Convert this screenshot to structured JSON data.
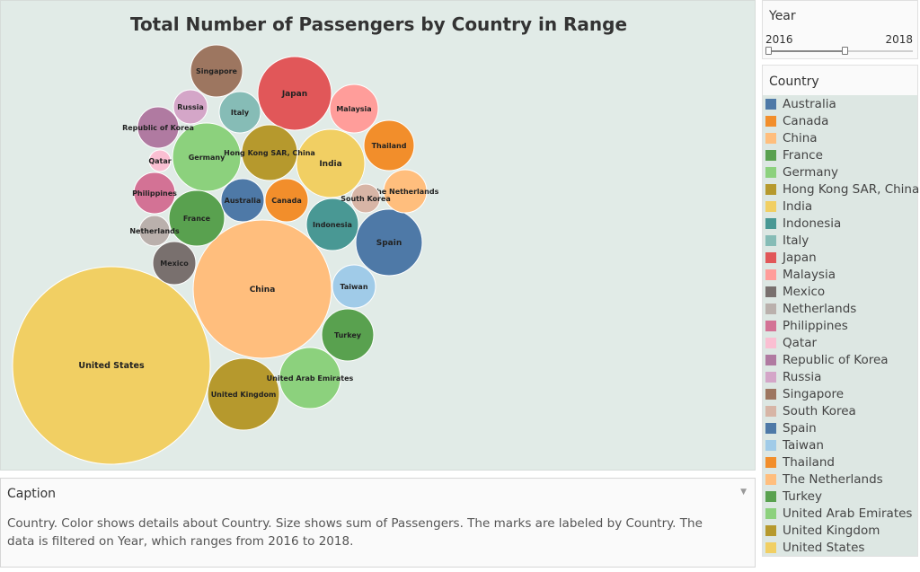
{
  "chart_data": {
    "type": "bubble",
    "title": "Total Number of Passengers by Country in Range",
    "size_measure": "sum of Passengers",
    "bubbles": [
      {
        "country": "United States",
        "color": "#f1cf63"
      },
      {
        "country": "China",
        "color": "#ffbe7d"
      },
      {
        "country": "Spain",
        "color": "#4e79a7"
      },
      {
        "country": "Japan",
        "color": "#e15759"
      },
      {
        "country": "United Kingdom",
        "color": "#b6992d"
      },
      {
        "country": "India",
        "color": "#f1cf63"
      },
      {
        "country": "United Arab Emirates",
        "color": "#8cd17d"
      },
      {
        "country": "Germany",
        "color": "#8cd17d"
      },
      {
        "country": "Hong Kong SAR, China",
        "color": "#b6992d"
      },
      {
        "country": "Turkey",
        "color": "#59a14f"
      },
      {
        "country": "Indonesia",
        "color": "#499894"
      },
      {
        "country": "France",
        "color": "#59a14f"
      },
      {
        "country": "Singapore",
        "color": "#9d7660"
      },
      {
        "country": "Thailand",
        "color": "#f28e2b"
      },
      {
        "country": "Malaysia",
        "color": "#ff9d9a"
      },
      {
        "country": "Australia",
        "color": "#4e79a7"
      },
      {
        "country": "Canada",
        "color": "#f28e2b"
      },
      {
        "country": "Taiwan",
        "color": "#a0cbe8"
      },
      {
        "country": "Mexico",
        "color": "#79706e"
      },
      {
        "country": "The Netherlands",
        "color": "#ffbe7d"
      },
      {
        "country": "Italy",
        "color": "#86bcb6"
      },
      {
        "country": "Republic of Korea",
        "color": "#b07aa1"
      },
      {
        "country": "Philippines",
        "color": "#d37295"
      },
      {
        "country": "Russia",
        "color": "#d4a6c8"
      },
      {
        "country": "Netherlands",
        "color": "#bab0ac"
      },
      {
        "country": "South Korea",
        "color": "#d7b5a6"
      },
      {
        "country": "Qatar",
        "color": "#fabfd2"
      }
    ]
  },
  "caption": {
    "header": "Caption",
    "text": "Country.  Color shows details about Country.  Size shows sum of Passengers.  The marks are labeled by Country. The data is filtered on Year, which ranges from 2016 to 2018."
  },
  "year_filter": {
    "title": "Year",
    "min_label": "2016",
    "max_label": "2018"
  },
  "legend": {
    "title": "Country",
    "items": [
      {
        "label": "Australia",
        "color": "#4e79a7"
      },
      {
        "label": "Canada",
        "color": "#f28e2b"
      },
      {
        "label": "China",
        "color": "#ffbe7d"
      },
      {
        "label": "France",
        "color": "#59a14f"
      },
      {
        "label": "Germany",
        "color": "#8cd17d"
      },
      {
        "label": "Hong Kong SAR, China",
        "color": "#b6992d"
      },
      {
        "label": "India",
        "color": "#f1cf63"
      },
      {
        "label": "Indonesia",
        "color": "#499894"
      },
      {
        "label": "Italy",
        "color": "#86bcb6"
      },
      {
        "label": "Japan",
        "color": "#e15759"
      },
      {
        "label": "Malaysia",
        "color": "#ff9d9a"
      },
      {
        "label": "Mexico",
        "color": "#79706e"
      },
      {
        "label": "Netherlands",
        "color": "#bab0ac"
      },
      {
        "label": "Philippines",
        "color": "#d37295"
      },
      {
        "label": "Qatar",
        "color": "#fabfd2"
      },
      {
        "label": "Republic of Korea",
        "color": "#b07aa1"
      },
      {
        "label": "Russia",
        "color": "#d4a6c8"
      },
      {
        "label": "Singapore",
        "color": "#9d7660"
      },
      {
        "label": "South Korea",
        "color": "#d7b5a6"
      },
      {
        "label": "Spain",
        "color": "#4e79a7"
      },
      {
        "label": "Taiwan",
        "color": "#a0cbe8"
      },
      {
        "label": "Thailand",
        "color": "#f28e2b"
      },
      {
        "label": "The Netherlands",
        "color": "#ffbe7d"
      },
      {
        "label": "Turkey",
        "color": "#59a14f"
      },
      {
        "label": "United Arab Emirates",
        "color": "#8cd17d"
      },
      {
        "label": "United Kingdom",
        "color": "#b6992d"
      },
      {
        "label": "United States",
        "color": "#f1cf63"
      }
    ]
  }
}
